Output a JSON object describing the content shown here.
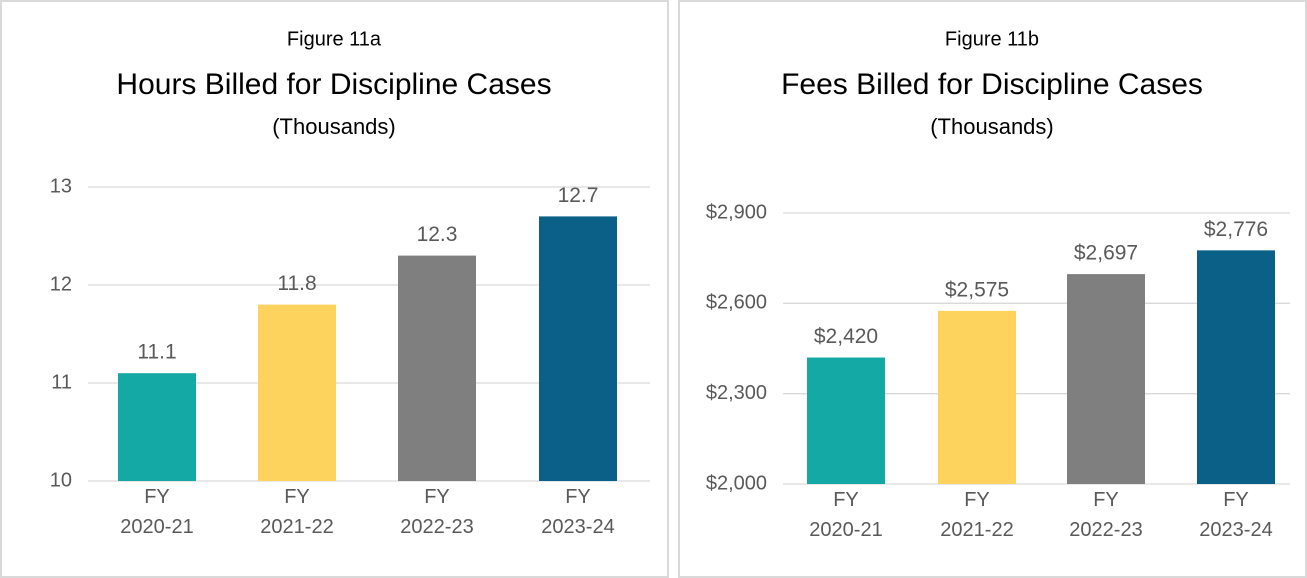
{
  "chart_data": [
    {
      "type": "bar",
      "subtitle": "Figure 11a",
      "title": "Hours Billed for Discipline Cases",
      "note": "(Thousands)",
      "categories": [
        "FY 2020-21",
        "FY 2021-22",
        "FY 2022-23",
        "FY 2023-24"
      ],
      "values": [
        11.1,
        11.8,
        12.3,
        12.7
      ],
      "colors": [
        "#14a9a4",
        "#fed35d",
        "#7f7f7f",
        "#0b6087"
      ],
      "ylim": [
        10,
        13
      ],
      "yticks": [
        10,
        11,
        12,
        13
      ],
      "grid": true
    },
    {
      "type": "bar",
      "subtitle": "Figure 11b",
      "title": "Fees Billed for Discipline Cases",
      "note": "(Thousands)",
      "categories": [
        "FY 2020-21",
        "FY 2021-22",
        "FY 2022-23",
        "FY 2023-24"
      ],
      "values": [
        2420,
        2575,
        2697,
        2776
      ],
      "value_labels": [
        "$2,420",
        "$2,575",
        "$2,697",
        "$2,776"
      ],
      "colors": [
        "#14a9a4",
        "#fed35d",
        "#7f7f7f",
        "#0b6087"
      ],
      "ylim": [
        2000,
        2900
      ],
      "yticks": [
        {
          "value": 2000,
          "label": "$2,000"
        },
        {
          "value": 2300,
          "label": "$2,300"
        },
        {
          "value": 2600,
          "label": "$2,600"
        },
        {
          "value": 2900,
          "label": "$2,900"
        }
      ],
      "grid": true
    }
  ]
}
